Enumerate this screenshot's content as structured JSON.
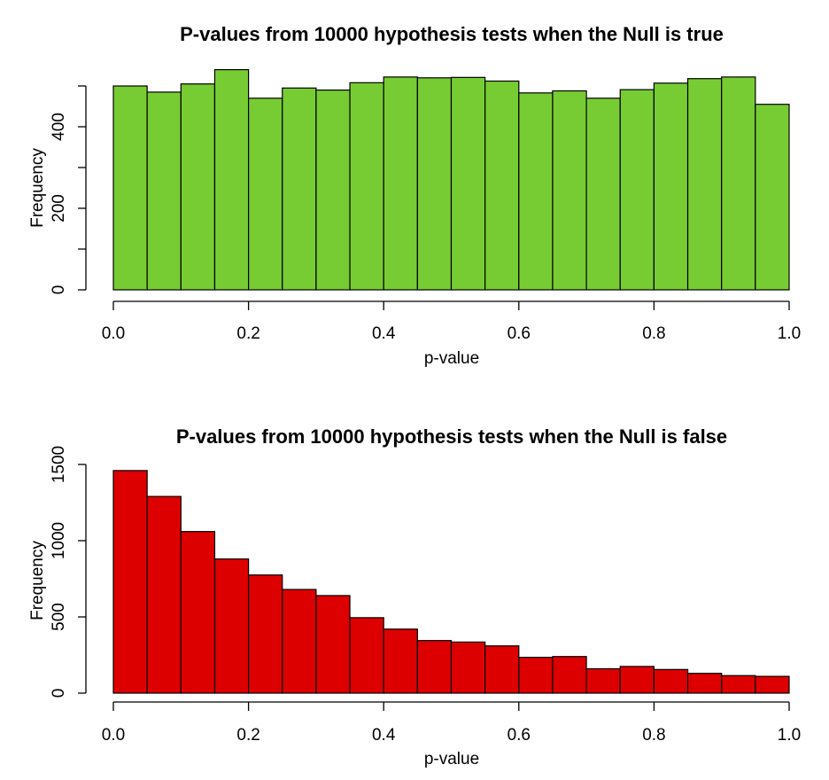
{
  "chart_data": [
    {
      "type": "bar",
      "title": "P-values from 10000 hypothesis tests when the Null is true",
      "xlabel": "p-value",
      "ylabel": "Frequency",
      "bar_color": "#77cc33",
      "xlim": [
        0,
        1
      ],
      "ylim": [
        0,
        500
      ],
      "x_ticks": [
        0.0,
        0.2,
        0.4,
        0.6,
        0.8,
        1.0
      ],
      "x_tick_labels": [
        "0.0",
        "0.2",
        "0.4",
        "0.6",
        "0.8",
        "1.0"
      ],
      "y_ticks": [
        0,
        100,
        200,
        300,
        400,
        500
      ],
      "y_tick_labels": [
        "0",
        "",
        "200",
        "",
        "400",
        ""
      ],
      "bin_edges": [
        0,
        0.05,
        0.1,
        0.15,
        0.2,
        0.25,
        0.3,
        0.35,
        0.4,
        0.45,
        0.5,
        0.55,
        0.6,
        0.65,
        0.7,
        0.75,
        0.8,
        0.85,
        0.9,
        0.95,
        1.0
      ],
      "values": [
        500,
        485,
        505,
        540,
        470,
        495,
        490,
        508,
        522,
        520,
        521,
        512,
        483,
        488,
        470,
        491,
        507,
        518,
        522,
        455
      ]
    },
    {
      "type": "bar",
      "title": "P-values from 10000 hypothesis tests when the Null is false",
      "xlabel": "p-value",
      "ylabel": "Frequency",
      "bar_color": "#dd0000",
      "xlim": [
        0,
        1
      ],
      "ylim": [
        0,
        1500
      ],
      "x_ticks": [
        0.0,
        0.2,
        0.4,
        0.6,
        0.8,
        1.0
      ],
      "x_tick_labels": [
        "0.0",
        "0.2",
        "0.4",
        "0.6",
        "0.8",
        "1.0"
      ],
      "y_ticks": [
        0,
        500,
        1000,
        1500
      ],
      "y_tick_labels": [
        "0",
        "500",
        "1000",
        "1500"
      ],
      "bin_edges": [
        0,
        0.05,
        0.1,
        0.15,
        0.2,
        0.25,
        0.3,
        0.35,
        0.4,
        0.45,
        0.5,
        0.55,
        0.6,
        0.65,
        0.7,
        0.75,
        0.8,
        0.85,
        0.9,
        0.95,
        1.0
      ],
      "values": [
        1460,
        1290,
        1060,
        880,
        775,
        680,
        640,
        495,
        420,
        345,
        335,
        310,
        235,
        240,
        160,
        175,
        155,
        130,
        115,
        110
      ]
    }
  ]
}
